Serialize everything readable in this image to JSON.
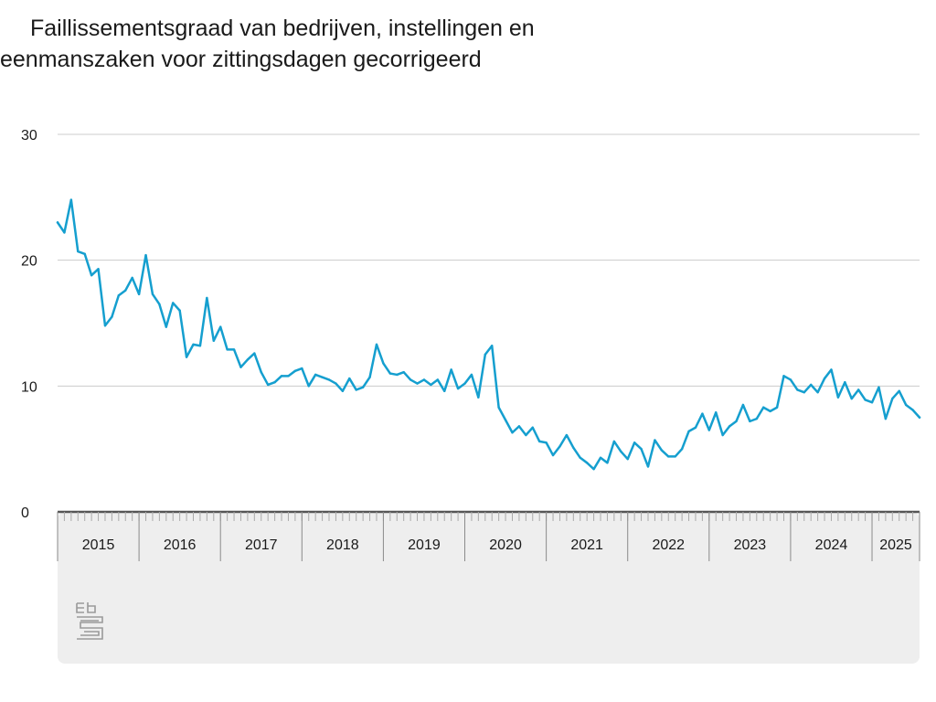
{
  "title_line1": "Faillissementsgraad van bedrijven, instellingen en",
  "title_line2": "eenmanszaken voor zittingsdagen gecorrigeerd",
  "logo": "cbs-logo",
  "colors": {
    "line": "#159fcf",
    "grid": "#cccccc",
    "axis": "#555555",
    "panel": "#eeeeee",
    "text": "#1a1a1a"
  },
  "chart_data": {
    "type": "line",
    "title": "Faillissementsgraad van bedrijven, instellingen en eenmanszaken voor zittingsdagen gecorrigeerd",
    "ylim": [
      0,
      30
    ],
    "yticks": [
      0,
      10,
      20,
      30
    ],
    "grid": true,
    "x_start": "2015-01",
    "x_labels": [
      "2015",
      "2016",
      "2017",
      "2018",
      "2019",
      "2020",
      "2021",
      "2022",
      "2023",
      "2024",
      "2025"
    ],
    "series": [
      {
        "name": "",
        "values": [
          23.0,
          22.2,
          24.8,
          20.7,
          20.5,
          18.8,
          19.3,
          14.8,
          15.5,
          17.2,
          17.6,
          18.6,
          17.3,
          20.4,
          17.3,
          16.5,
          14.7,
          16.6,
          16.0,
          12.3,
          13.3,
          13.2,
          17.0,
          13.6,
          14.7,
          12.9,
          12.9,
          11.5,
          12.1,
          12.6,
          11.1,
          10.1,
          10.3,
          10.8,
          10.8,
          11.2,
          11.4,
          10.0,
          10.9,
          10.7,
          10.5,
          10.2,
          9.6,
          10.6,
          9.7,
          9.9,
          10.7,
          13.3,
          11.8,
          11.0,
          10.9,
          11.1,
          10.5,
          10.2,
          10.5,
          10.1,
          10.5,
          9.6,
          11.3,
          9.8,
          10.2,
          10.9,
          9.1,
          12.5,
          13.2,
          8.3,
          7.3,
          6.3,
          6.8,
          6.1,
          6.7,
          5.6,
          5.5,
          4.5,
          5.2,
          6.1,
          5.1,
          4.3,
          3.9,
          3.4,
          4.3,
          3.9,
          5.6,
          4.8,
          4.2,
          5.5,
          5.0,
          3.6,
          5.7,
          4.9,
          4.4,
          4.4,
          5.0,
          6.4,
          6.7,
          7.8,
          6.5,
          7.9,
          6.1,
          6.8,
          7.2,
          8.5,
          7.2,
          7.4,
          8.3,
          8.0,
          8.3,
          10.8,
          10.5,
          9.7,
          9.5,
          10.1,
          9.5,
          10.6,
          11.3,
          9.1,
          10.3,
          9.0,
          9.7,
          8.9,
          8.7,
          9.9,
          7.4,
          9.0,
          9.6,
          8.5,
          8.1,
          7.5
        ]
      }
    ]
  }
}
